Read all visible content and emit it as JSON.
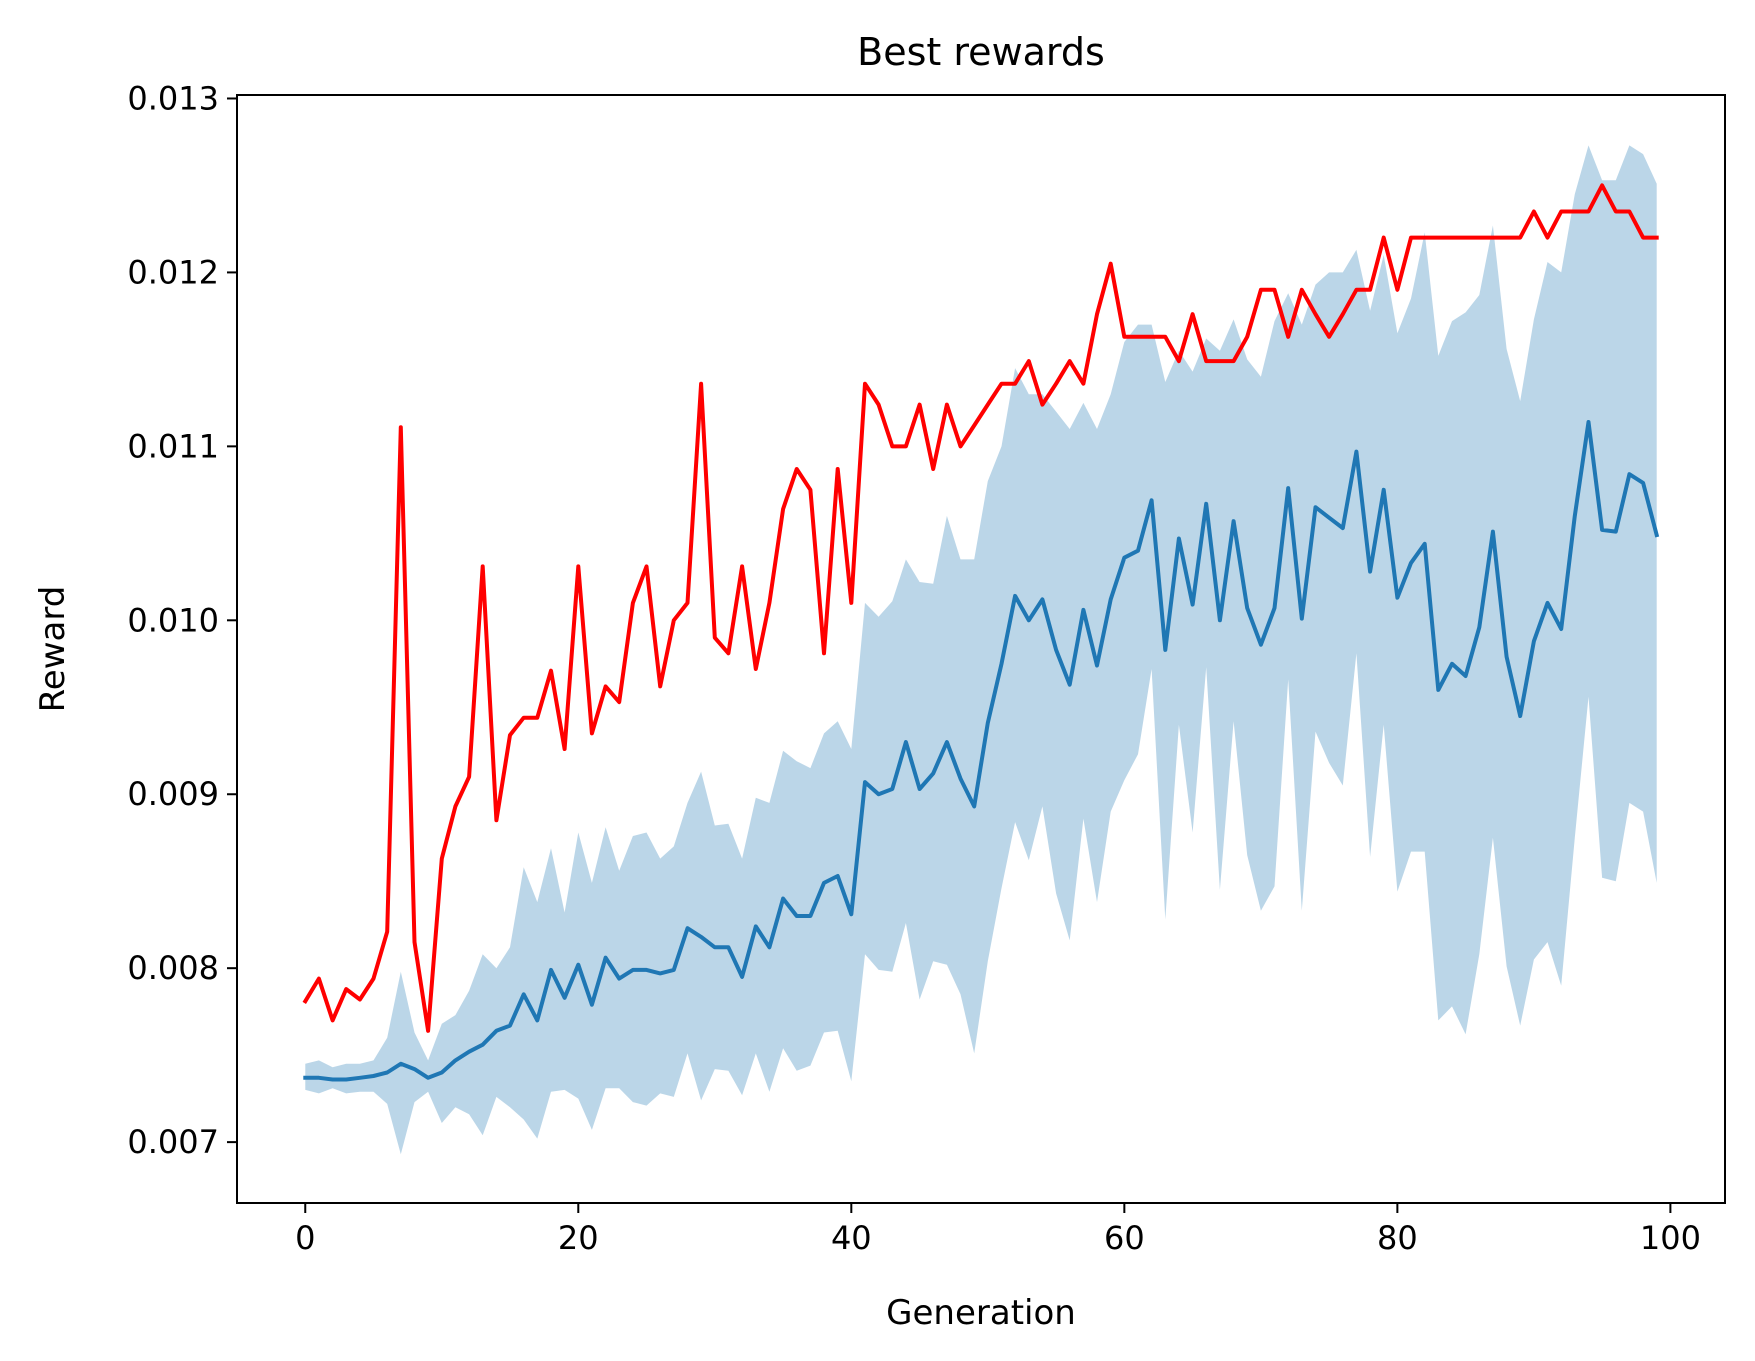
{
  "chart_data": {
    "type": "line",
    "title": "Best rewards",
    "xlabel": "Generation",
    "ylabel": "Reward",
    "xlim": [
      -5,
      104
    ],
    "ylim": [
      0.00665,
      0.01302
    ],
    "grid": false,
    "legend": "none",
    "xticks": [
      0,
      20,
      40,
      60,
      80,
      100
    ],
    "yticks": [
      0.007,
      0.008,
      0.009,
      0.01,
      0.011,
      0.012,
      0.013
    ],
    "xtick_labels": [
      "0",
      "20",
      "40",
      "60",
      "80",
      "100"
    ],
    "ytick_labels": [
      "0.007",
      "0.008",
      "0.009",
      "0.010",
      "0.011",
      "0.012",
      "0.013"
    ],
    "x": [
      0,
      1,
      2,
      3,
      4,
      5,
      6,
      7,
      8,
      9,
      10,
      11,
      12,
      13,
      14,
      15,
      16,
      17,
      18,
      19,
      20,
      21,
      22,
      23,
      24,
      25,
      26,
      27,
      28,
      29,
      30,
      31,
      32,
      33,
      34,
      35,
      36,
      37,
      38,
      39,
      40,
      41,
      42,
      43,
      44,
      45,
      46,
      47,
      48,
      49,
      50,
      51,
      52,
      53,
      54,
      55,
      56,
      57,
      58,
      59,
      60,
      61,
      62,
      63,
      64,
      65,
      66,
      67,
      68,
      69,
      70,
      71,
      72,
      73,
      74,
      75,
      76,
      77,
      78,
      79,
      80,
      81,
      82,
      83,
      84,
      85,
      86,
      87,
      88,
      89,
      90,
      91,
      92,
      93,
      94,
      95,
      96,
      97,
      98,
      99
    ],
    "series": [
      {
        "color": "#ff0000",
        "values": [
          0.00781,
          0.00794,
          0.0077,
          0.00788,
          0.00782,
          0.00794,
          0.00821,
          0.01111,
          0.00815,
          0.00764,
          0.00863,
          0.00893,
          0.0091,
          0.01031,
          0.00885,
          0.00934,
          0.00944,
          0.00944,
          0.00971,
          0.00926,
          0.01031,
          0.00935,
          0.00962,
          0.00953,
          0.0101,
          0.01031,
          0.00962,
          0.01,
          0.0101,
          0.01136,
          0.0099,
          0.00981,
          0.01031,
          0.00972,
          0.0101,
          0.01064,
          0.01087,
          0.01075,
          0.00981,
          0.01087,
          0.0101,
          0.01136,
          0.01124,
          0.011,
          0.011,
          0.01124,
          0.01087,
          0.01124,
          0.011,
          0.01112,
          0.01124,
          0.01136,
          0.01136,
          0.01149,
          0.01124,
          0.01136,
          0.01149,
          0.01136,
          0.01176,
          0.01205,
          0.01163,
          0.01163,
          0.01163,
          0.01163,
          0.01149,
          0.01176,
          0.01149,
          0.01149,
          0.01149,
          0.01163,
          0.0119,
          0.0119,
          0.01163,
          0.0119,
          0.01176,
          0.01163,
          0.01176,
          0.0119,
          0.0119,
          0.0122,
          0.0119,
          0.0122,
          0.0122,
          0.0122,
          0.0122,
          0.0122,
          0.0122,
          0.0122,
          0.0122,
          0.0122,
          0.01235,
          0.0122,
          0.01235,
          0.01235,
          0.01235,
          0.0125,
          0.01235,
          0.01235,
          0.0122,
          0.0122
        ]
      },
      {
        "color": "#1f77b4",
        "values": [
          0.00737,
          0.00737,
          0.00736,
          0.00736,
          0.00737,
          0.00738,
          0.0074,
          0.00745,
          0.00742,
          0.00737,
          0.0074,
          0.00747,
          0.00752,
          0.00756,
          0.00764,
          0.00767,
          0.00785,
          0.0077,
          0.00799,
          0.00783,
          0.00802,
          0.00779,
          0.00806,
          0.00794,
          0.00799,
          0.00799,
          0.00797,
          0.00799,
          0.00823,
          0.00818,
          0.00812,
          0.00812,
          0.00795,
          0.00824,
          0.00812,
          0.0084,
          0.0083,
          0.0083,
          0.00849,
          0.00853,
          0.00831,
          0.00907,
          0.009,
          0.00903,
          0.0093,
          0.00903,
          0.00912,
          0.0093,
          0.00909,
          0.00893,
          0.00941,
          0.00975,
          0.01014,
          0.01,
          0.01012,
          0.00983,
          0.00963,
          0.01006,
          0.00974,
          0.01012,
          0.01036,
          0.0104,
          0.01069,
          0.00983,
          0.01047,
          0.01009,
          0.01067,
          0.01,
          0.01057,
          0.01007,
          0.00986,
          0.01007,
          0.01076,
          0.01001,
          0.01065,
          0.01059,
          0.01053,
          0.01097,
          0.01028,
          0.01075,
          0.01013,
          0.01033,
          0.01044,
          0.0096,
          0.00975,
          0.00968,
          0.00996,
          0.01051,
          0.00979,
          0.00945,
          0.00988,
          0.0101,
          0.00995,
          0.0106,
          0.01114,
          0.01052,
          0.01051,
          0.01084,
          0.01079,
          0.01049
        ]
      }
    ],
    "band": {
      "color": "#1f77b4",
      "opacity": 0.3,
      "upper": [
        0.00745,
        0.00747,
        0.00743,
        0.00745,
        0.00745,
        0.00747,
        0.0076,
        0.00798,
        0.00763,
        0.00747,
        0.00768,
        0.00773,
        0.00787,
        0.00808,
        0.008,
        0.00812,
        0.00858,
        0.00838,
        0.00869,
        0.00832,
        0.00878,
        0.00849,
        0.00881,
        0.00856,
        0.00876,
        0.00878,
        0.00863,
        0.0087,
        0.00895,
        0.00913,
        0.00882,
        0.00883,
        0.00863,
        0.00898,
        0.00895,
        0.00925,
        0.00919,
        0.00915,
        0.00935,
        0.00942,
        0.00926,
        0.0101,
        0.01002,
        0.01011,
        0.01035,
        0.01022,
        0.01021,
        0.0106,
        0.01035,
        0.01035,
        0.0108,
        0.011,
        0.01145,
        0.0113,
        0.0113,
        0.0112,
        0.0111,
        0.01125,
        0.0111,
        0.0113,
        0.0116,
        0.0117,
        0.0117,
        0.01137,
        0.01155,
        0.01143,
        0.01162,
        0.01155,
        0.01173,
        0.0115,
        0.0114,
        0.01172,
        0.01188,
        0.0117,
        0.01193,
        0.012,
        0.012,
        0.01213,
        0.01178,
        0.0121,
        0.01165,
        0.01185,
        0.01223,
        0.01152,
        0.01172,
        0.01177,
        0.01187,
        0.01227,
        0.01156,
        0.01126,
        0.01173,
        0.01206,
        0.012,
        0.01245,
        0.01273,
        0.01253,
        0.01253,
        0.01273,
        0.01268,
        0.01251
      ],
      "lower": [
        0.0073,
        0.00728,
        0.00731,
        0.00728,
        0.00729,
        0.00729,
        0.00722,
        0.00693,
        0.00723,
        0.00729,
        0.00711,
        0.0072,
        0.00716,
        0.00704,
        0.00726,
        0.0072,
        0.00713,
        0.00702,
        0.00729,
        0.0073,
        0.00725,
        0.00707,
        0.00731,
        0.00731,
        0.00723,
        0.00721,
        0.00728,
        0.00726,
        0.00751,
        0.00724,
        0.00742,
        0.00741,
        0.00727,
        0.00751,
        0.00729,
        0.00754,
        0.00741,
        0.00744,
        0.00763,
        0.00764,
        0.00735,
        0.00808,
        0.00799,
        0.00798,
        0.00826,
        0.00782,
        0.00804,
        0.00802,
        0.00785,
        0.00751,
        0.00804,
        0.00846,
        0.00884,
        0.00862,
        0.00893,
        0.00843,
        0.00816,
        0.00886,
        0.00838,
        0.0089,
        0.00908,
        0.00923,
        0.00972,
        0.00828,
        0.0094,
        0.00878,
        0.00973,
        0.00845,
        0.00942,
        0.00865,
        0.00833,
        0.00847,
        0.00966,
        0.00833,
        0.00936,
        0.00918,
        0.00905,
        0.00981,
        0.00864,
        0.0094,
        0.00844,
        0.00867,
        0.00867,
        0.0077,
        0.00778,
        0.00762,
        0.00808,
        0.00875,
        0.00801,
        0.00767,
        0.00805,
        0.00815,
        0.0079,
        0.00875,
        0.00956,
        0.00852,
        0.0085,
        0.00895,
        0.0089,
        0.00849
      ]
    }
  }
}
